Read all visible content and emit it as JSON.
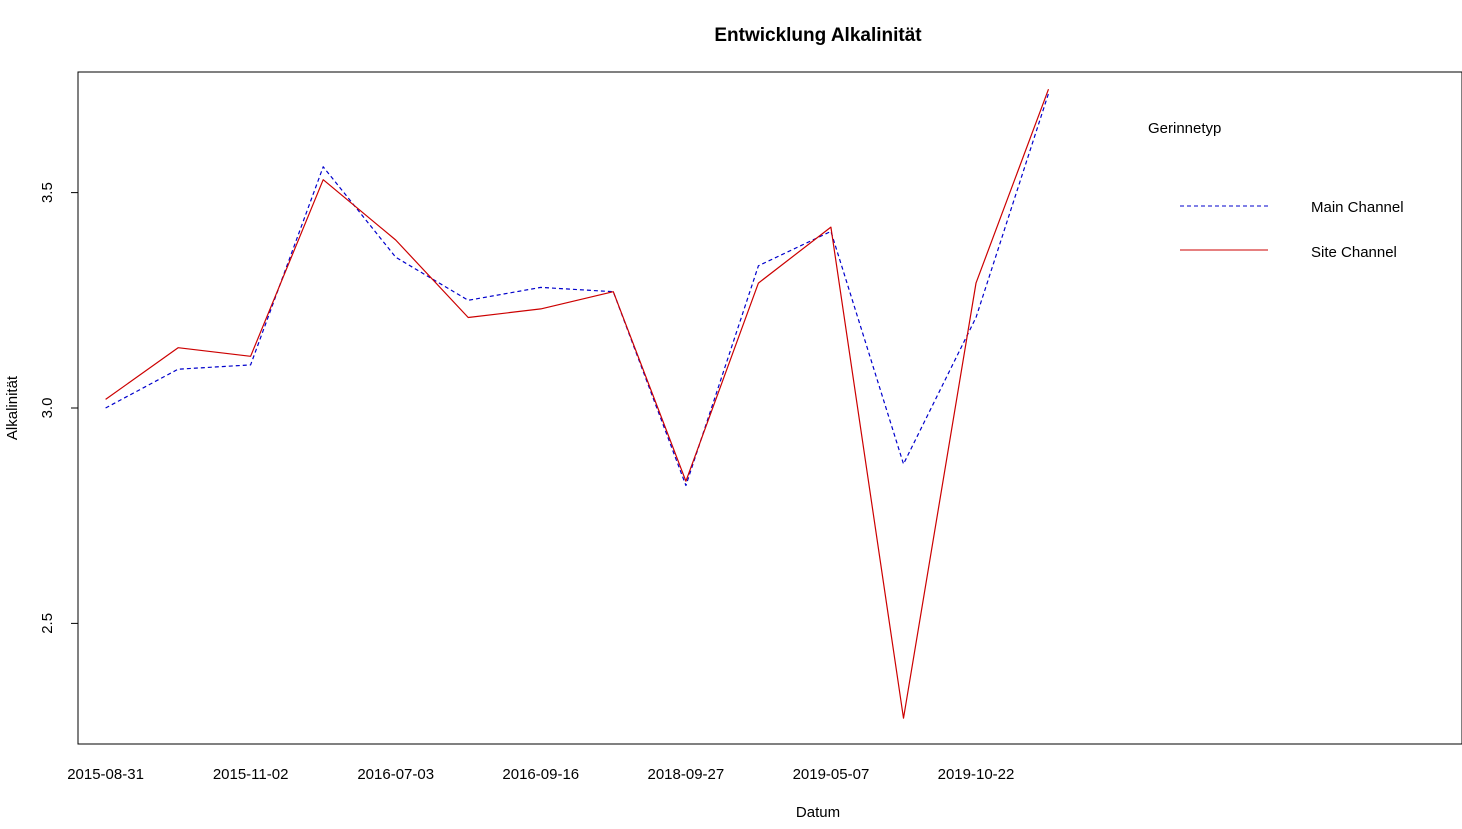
{
  "chart_data": {
    "type": "line",
    "title": "Entwicklung Alkalinität",
    "xlabel": "Datum",
    "ylabel": "Alkalinität",
    "x_tick_labels": [
      "2015-08-31",
      "2015-11-02",
      "2016-07-03",
      "2016-09-16",
      "2018-09-27",
      "2019-05-07",
      "2019-10-22"
    ],
    "x_tick_positions": [
      1,
      3,
      5,
      7,
      9,
      11,
      13
    ],
    "xlim": [
      0.62,
      19.7
    ],
    "y_ticks": [
      "2.5",
      "3.0",
      "3.5"
    ],
    "y_tick_values": [
      2.5,
      3.0,
      3.5
    ],
    "ylim": [
      2.22,
      3.78
    ],
    "grid": false,
    "legend": {
      "title": "Gerinnetyp",
      "position": "top-right"
    },
    "x": [
      1,
      2,
      3,
      4,
      5,
      6,
      7,
      8,
      9,
      10,
      11,
      12,
      13,
      14
    ],
    "series": [
      {
        "name": "Main Channel",
        "color": "#0000cc",
        "line_style": "dashed",
        "values": [
          3.0,
          3.09,
          3.1,
          3.56,
          3.35,
          3.25,
          3.28,
          3.27,
          2.82,
          3.33,
          3.41,
          2.87,
          3.21,
          3.73
        ]
      },
      {
        "name": "Site Channel",
        "color": "#cc0000",
        "line_style": "solid",
        "values": [
          3.02,
          3.14,
          3.12,
          3.53,
          3.39,
          3.21,
          3.23,
          3.27,
          2.83,
          3.29,
          3.42,
          2.28,
          3.29,
          3.74
        ]
      }
    ]
  }
}
